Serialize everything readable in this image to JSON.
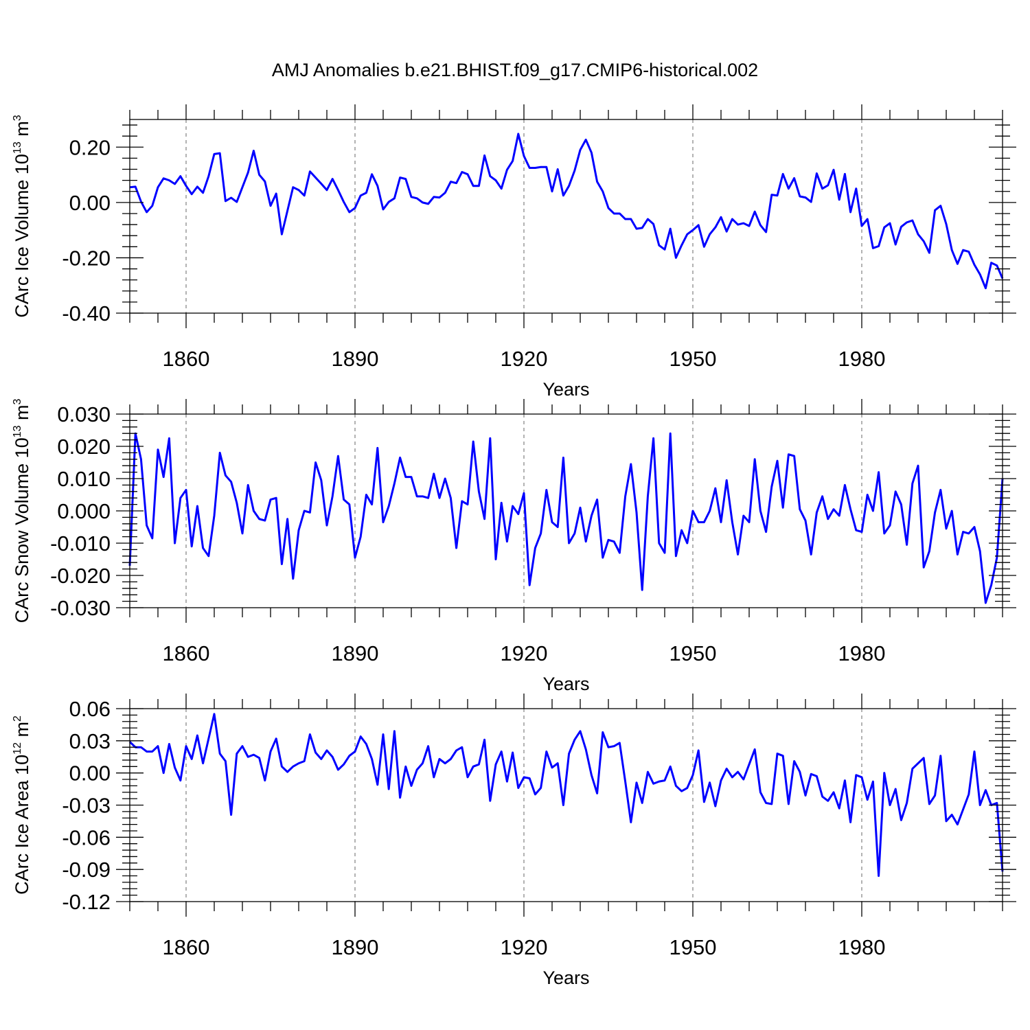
{
  "figure_title": "AMJ Anomalies b.e21.BHIST.f09_g17.CMIP6-historical.002",
  "chart_data": [
    {
      "type": "line",
      "name": "ice-volume",
      "ylabel_main": "CArc Ice Volume 10",
      "ylabel_exp": "13",
      "ylabel_unit": " m",
      "ylabel_unit_exp": "3",
      "xlabel": "Years",
      "xlim": [
        1850,
        2005
      ],
      "ylim": [
        -0.4,
        0.3
      ],
      "x_ticks": [
        1860,
        1890,
        1920,
        1950,
        1980
      ],
      "x_tick_labels": [
        "1860",
        "1890",
        "1920",
        "1950",
        "1980"
      ],
      "y_ticks": [
        -0.4,
        -0.2,
        0.0,
        0.2
      ],
      "y_tick_labels": [
        "-0.40",
        "-0.20",
        "0.00",
        "0.20"
      ],
      "x_start": 1850,
      "values": [
        0.055,
        0.057,
        0.003,
        -0.035,
        -0.012,
        0.055,
        0.087,
        0.08,
        0.067,
        0.095,
        0.06,
        0.03,
        0.057,
        0.035,
        0.095,
        0.175,
        0.178,
        0.005,
        0.017,
        0.002,
        0.055,
        0.108,
        0.187,
        0.1,
        0.076,
        -0.012,
        0.032,
        -0.115,
        -0.03,
        0.055,
        0.045,
        0.025,
        0.112,
        0.09,
        0.068,
        0.045,
        0.085,
        0.045,
        0.002,
        -0.035,
        -0.02,
        0.025,
        0.035,
        0.102,
        0.06,
        -0.025,
        0.002,
        0.015,
        0.09,
        0.085,
        0.02,
        0.015,
        0.0,
        -0.005,
        0.02,
        0.018,
        0.035,
        0.075,
        0.07,
        0.11,
        0.102,
        0.06,
        0.06,
        0.17,
        0.095,
        0.08,
        0.05,
        0.118,
        0.15,
        0.248,
        0.168,
        0.125,
        0.125,
        0.128,
        0.128,
        0.04,
        0.12,
        0.025,
        0.06,
        0.115,
        0.19,
        0.227,
        0.18,
        0.075,
        0.04,
        -0.02,
        -0.04,
        -0.04,
        -0.06,
        -0.06,
        -0.095,
        -0.092,
        -0.06,
        -0.078,
        -0.155,
        -0.17,
        -0.095,
        -0.2,
        -0.155,
        -0.115,
        -0.1,
        -0.082,
        -0.16,
        -0.115,
        -0.09,
        -0.053,
        -0.105,
        -0.06,
        -0.08,
        -0.075,
        -0.085,
        -0.033,
        -0.082,
        -0.107,
        0.028,
        0.025,
        0.103,
        0.05,
        0.088,
        0.022,
        0.018,
        0.002,
        0.105,
        0.05,
        0.062,
        0.118,
        0.01,
        0.103,
        -0.035,
        0.05,
        -0.085,
        -0.06,
        -0.165,
        -0.158,
        -0.09,
        -0.075,
        -0.152,
        -0.088,
        -0.072,
        -0.065,
        -0.115,
        -0.14,
        -0.182,
        -0.028,
        -0.012,
        -0.078,
        -0.172,
        -0.222,
        -0.172,
        -0.178,
        -0.225,
        -0.26,
        -0.31,
        -0.218,
        -0.228,
        -0.275
      ]
    },
    {
      "type": "line",
      "name": "snow-volume",
      "ylabel_main": "CArc Snow Volume 10",
      "ylabel_exp": "13",
      "ylabel_unit": " m",
      "ylabel_unit_exp": "3",
      "xlabel": "Years",
      "xlim": [
        1850,
        2005
      ],
      "ylim": [
        -0.03,
        0.03
      ],
      "x_ticks": [
        1860,
        1890,
        1920,
        1950,
        1980
      ],
      "x_tick_labels": [
        "1860",
        "1890",
        "1920",
        "1950",
        "1980"
      ],
      "y_ticks": [
        -0.03,
        -0.02,
        -0.01,
        0.0,
        0.01,
        0.02,
        0.03
      ],
      "y_tick_labels": [
        "-0.030",
        "-0.020",
        "-0.010",
        "0.000",
        "0.010",
        "0.020",
        "0.030"
      ],
      "x_start": 1850,
      "values": [
        -0.017,
        0.024,
        0.016,
        -0.0045,
        -0.0085,
        0.019,
        0.0105,
        0.0225,
        -0.01,
        0.004,
        0.0065,
        -0.011,
        0.0015,
        -0.0115,
        -0.014,
        -0.0015,
        0.018,
        0.011,
        0.009,
        0.0025,
        -0.007,
        0.008,
        0.0,
        -0.0025,
        -0.003,
        0.0035,
        0.004,
        -0.0165,
        -0.0025,
        -0.021,
        -0.006,
        0.0,
        -0.0005,
        0.015,
        0.0095,
        -0.0045,
        0.0045,
        0.017,
        0.0035,
        0.002,
        -0.0145,
        -0.008,
        0.005,
        0.002,
        0.0195,
        -0.0035,
        0.0015,
        0.0085,
        0.0165,
        0.0105,
        0.0105,
        0.0045,
        0.0045,
        0.004,
        0.0115,
        0.004,
        0.01,
        0.004,
        -0.0115,
        0.003,
        0.002,
        0.0215,
        0.006,
        -0.0025,
        0.0225,
        -0.015,
        0.0025,
        -0.0095,
        0.0015,
        -0.001,
        0.0055,
        -0.023,
        -0.0115,
        -0.007,
        0.0065,
        -0.0035,
        -0.005,
        0.0165,
        -0.01,
        -0.007,
        0.001,
        -0.0095,
        -0.0015,
        0.0035,
        -0.0145,
        -0.009,
        -0.0095,
        -0.013,
        0.0045,
        0.0145,
        -0.0005,
        -0.0245,
        0.0045,
        0.0225,
        -0.01,
        -0.013,
        0.024,
        -0.014,
        -0.006,
        -0.01,
        0.0,
        -0.0035,
        -0.0035,
        0.0,
        0.007,
        -0.0035,
        0.0095,
        -0.0035,
        -0.0135,
        -0.0015,
        -0.0035,
        0.016,
        0.0,
        -0.0065,
        0.0075,
        0.0155,
        0.001,
        0.0175,
        0.017,
        0.0005,
        -0.003,
        -0.0135,
        -0.0005,
        0.0045,
        -0.0025,
        0.0005,
        -0.0015,
        0.008,
        0.0005,
        -0.006,
        -0.0065,
        0.005,
        0.0,
        0.012,
        -0.007,
        -0.0045,
        0.006,
        0.002,
        -0.0105,
        0.0085,
        0.014,
        -0.0175,
        -0.0125,
        -0.0005,
        0.0065,
        -0.0055,
        0.0,
        -0.0135,
        -0.0065,
        -0.007,
        -0.005,
        -0.0125,
        -0.0285,
        -0.023,
        -0.0145,
        0.01
      ]
    },
    {
      "type": "line",
      "name": "ice-area",
      "ylabel_main": "CArc Ice Area 10",
      "ylabel_exp": "12",
      "ylabel_unit": " m",
      "ylabel_unit_exp": "2",
      "xlabel": "Years",
      "xlim": [
        1850,
        2005
      ],
      "ylim": [
        -0.12,
        0.06
      ],
      "x_ticks": [
        1860,
        1890,
        1920,
        1950,
        1980
      ],
      "x_tick_labels": [
        "1860",
        "1890",
        "1920",
        "1950",
        "1980"
      ],
      "y_ticks": [
        -0.12,
        -0.09,
        -0.06,
        -0.03,
        0.0,
        0.03,
        0.06
      ],
      "y_tick_labels": [
        "-0.12",
        "-0.09",
        "-0.06",
        "-0.03",
        "0.00",
        "0.03",
        "0.06"
      ],
      "x_start": 1850,
      "values": [
        0.029,
        0.024,
        0.024,
        0.02,
        0.02,
        0.025,
        0.0,
        0.027,
        0.005,
        -0.007,
        0.025,
        0.013,
        0.035,
        0.009,
        0.032,
        0.055,
        0.018,
        0.011,
        -0.039,
        0.018,
        0.025,
        0.015,
        0.017,
        0.014,
        -0.007,
        0.02,
        0.032,
        0.006,
        0.001,
        0.006,
        0.009,
        0.011,
        0.036,
        0.019,
        0.013,
        0.021,
        0.015,
        0.003,
        0.008,
        0.016,
        0.02,
        0.034,
        0.027,
        0.013,
        -0.011,
        0.036,
        -0.015,
        0.039,
        -0.023,
        0.006,
        -0.012,
        0.003,
        0.009,
        0.025,
        -0.004,
        0.013,
        0.009,
        0.013,
        0.021,
        0.024,
        -0.004,
        0.006,
        0.008,
        0.031,
        -0.026,
        0.008,
        0.02,
        -0.008,
        0.019,
        -0.014,
        -0.004,
        -0.005,
        -0.02,
        -0.014,
        0.02,
        0.005,
        0.009,
        -0.03,
        0.018,
        0.031,
        0.039,
        0.022,
        -0.002,
        -0.019,
        0.038,
        0.024,
        0.025,
        0.028,
        -0.008,
        -0.046,
        -0.009,
        -0.028,
        0.001,
        -0.01,
        -0.008,
        -0.007,
        0.006,
        -0.012,
        -0.017,
        -0.014,
        -0.002,
        0.021,
        -0.027,
        -0.009,
        -0.031,
        -0.007,
        0.004,
        -0.004,
        0.001,
        -0.006,
        0.008,
        0.022,
        -0.018,
        -0.028,
        -0.029,
        0.018,
        0.016,
        -0.029,
        0.011,
        0.001,
        -0.021,
        -0.001,
        -0.003,
        -0.022,
        -0.026,
        -0.018,
        -0.033,
        -0.007,
        -0.046,
        -0.002,
        -0.004,
        -0.025,
        -0.008,
        -0.096,
        0.0,
        -0.03,
        -0.015,
        -0.044,
        -0.028,
        0.004,
        0.009,
        0.014,
        -0.029,
        -0.021,
        0.016,
        -0.045,
        -0.039,
        -0.048,
        -0.034,
        -0.02,
        0.02,
        -0.03,
        -0.016,
        -0.03,
        -0.028,
        -0.092
      ]
    }
  ]
}
